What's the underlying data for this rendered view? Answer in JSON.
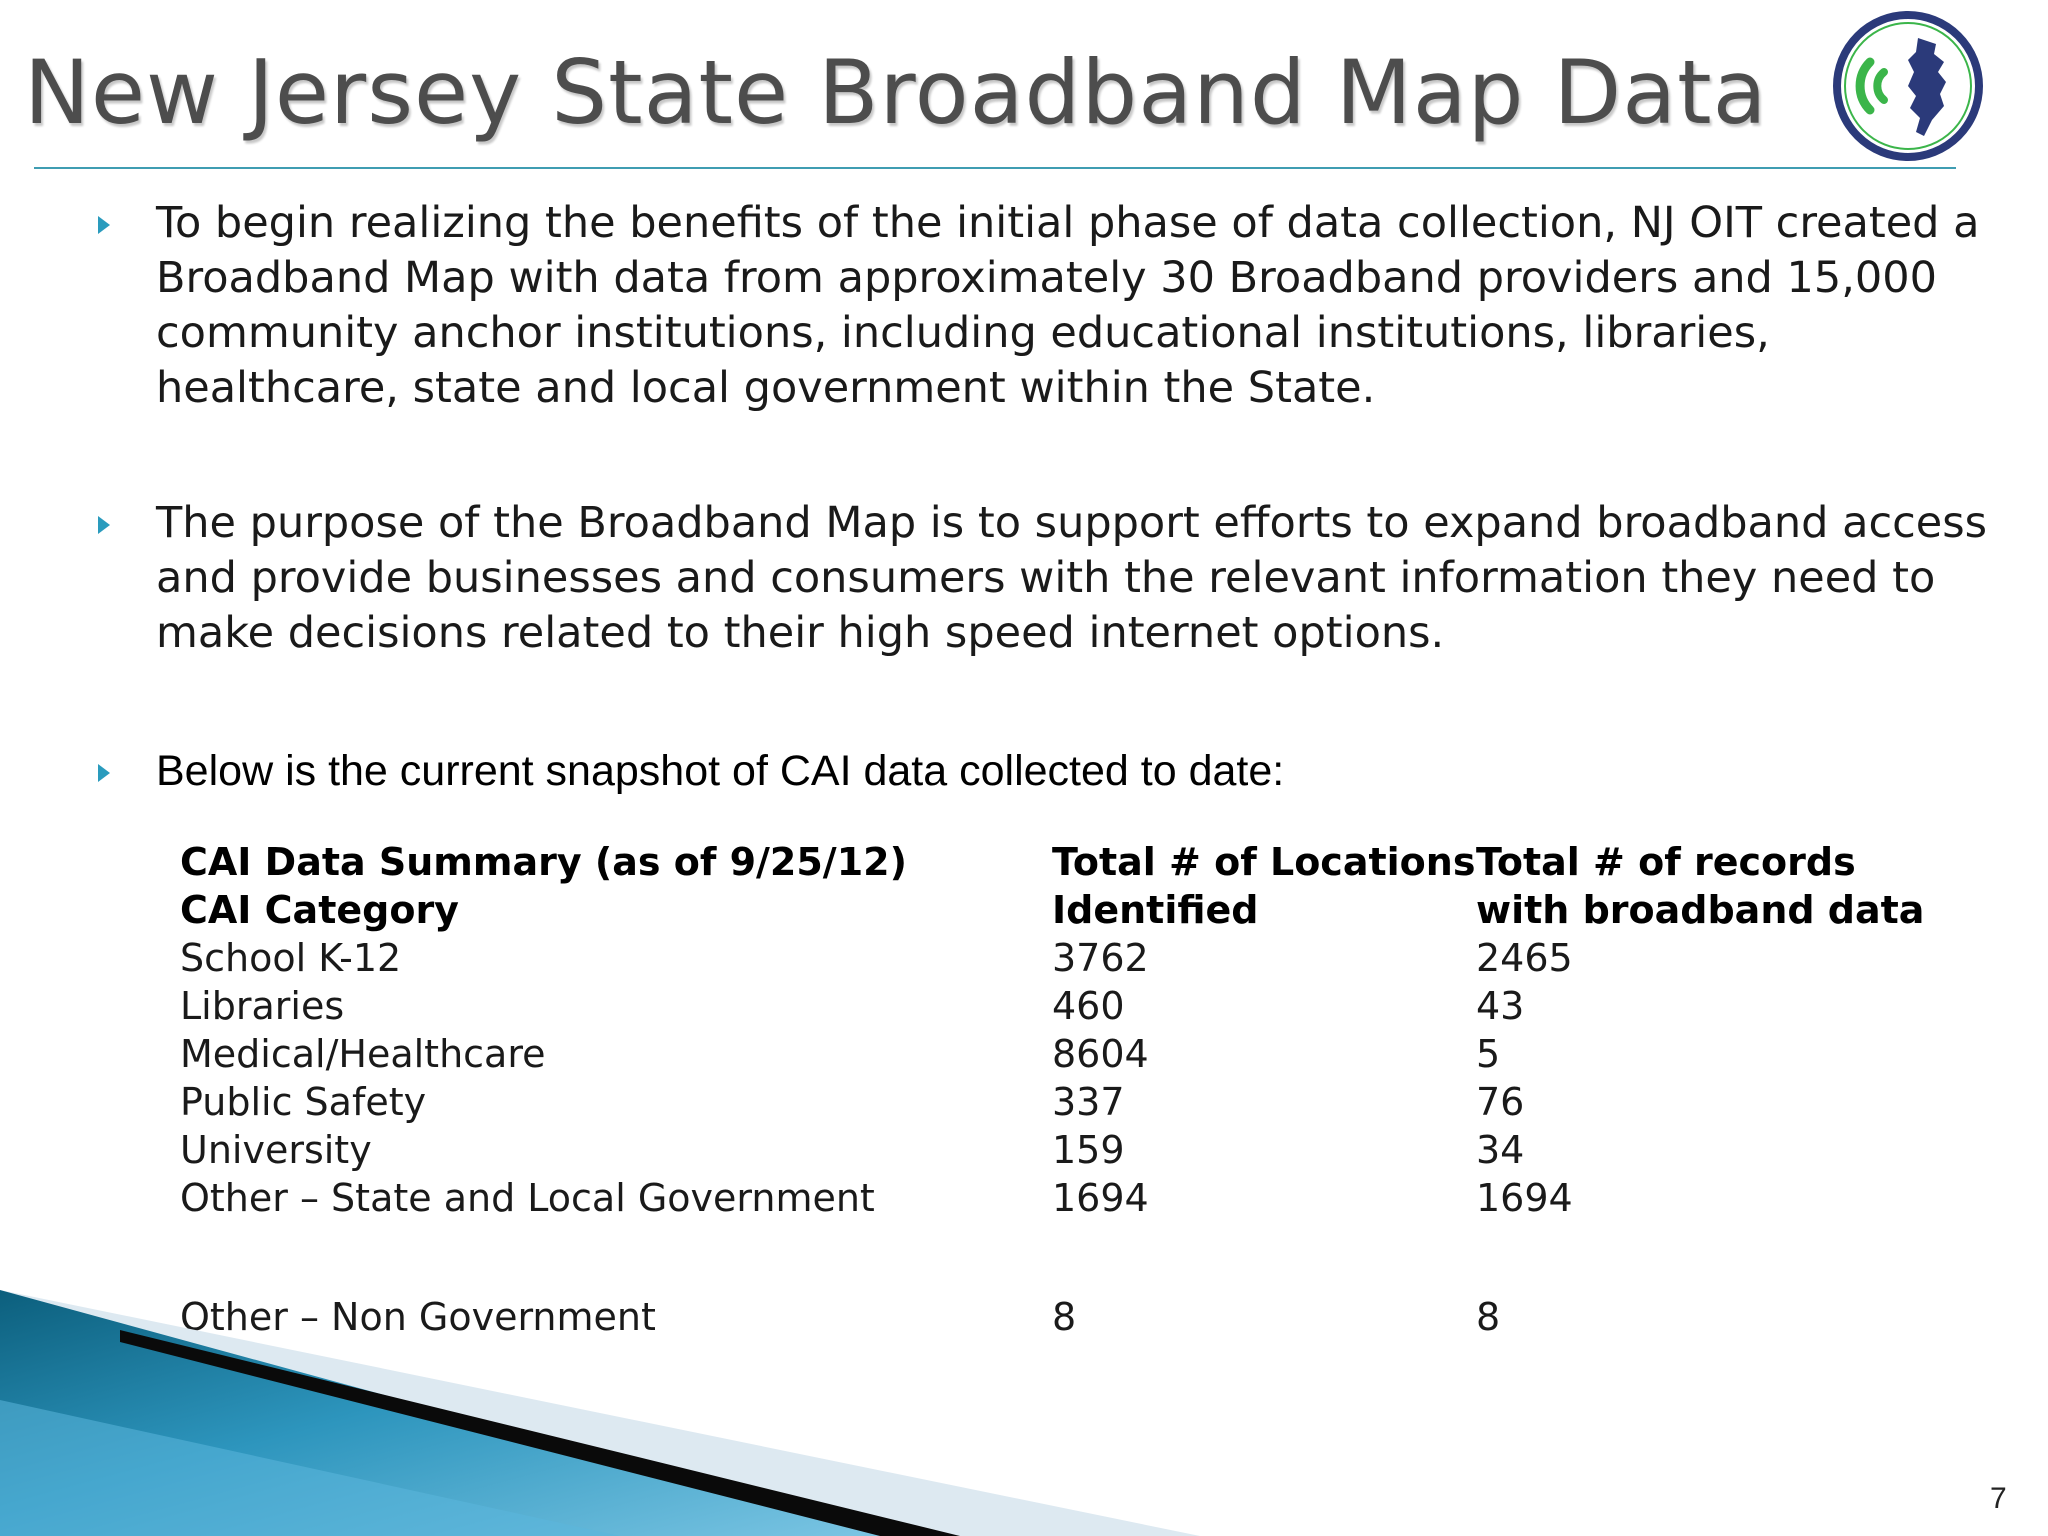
{
  "slide": {
    "title": "New Jersey State Broadband Map Data",
    "page_number": "7"
  },
  "bullets": [
    "To begin realizing the benefits of the initial phase of data collection, NJ OIT created a Broadband Map with data from approximately 30 Broadband providers and 15,000 community anchor institutions, including educational institutions, libraries, healthcare, state and local government within the State.",
    "The purpose of the Broadband Map is to support efforts to expand broadband access and provide businesses and consumers with the relevant information they need to make decisions related to their high speed internet options.",
    "Below is the current snapshot of CAI data collected to date:"
  ],
  "table": {
    "header_row1": [
      "CAI Data Summary (as of 9/25/12)",
      "Total # of Locations",
      "Total # of records"
    ],
    "header_row2": [
      "CAI Category",
      "Identified",
      "with broadband data"
    ],
    "rows": [
      [
        "School K-12",
        "3762",
        "2465"
      ],
      [
        "Libraries",
        "460",
        "43"
      ],
      [
        "Medical/Healthcare",
        "8604",
        "5"
      ],
      [
        "Public Safety",
        "337",
        "76"
      ],
      [
        "University",
        "159",
        "34"
      ],
      [
        "Other – State and Local Government",
        "1694",
        "1694"
      ]
    ],
    "last_row": [
      "Other – Non Government",
      "8",
      "8"
    ]
  },
  "colors": {
    "title_text": "#4d4d4d",
    "accent_teal": "#2a9bbd",
    "logo_navy": "#2b3a7a",
    "logo_green": "#3bb54a"
  },
  "icons": {
    "logo": "nj-broadband-logo-icon",
    "bullet": "triangle-bullet-icon"
  }
}
